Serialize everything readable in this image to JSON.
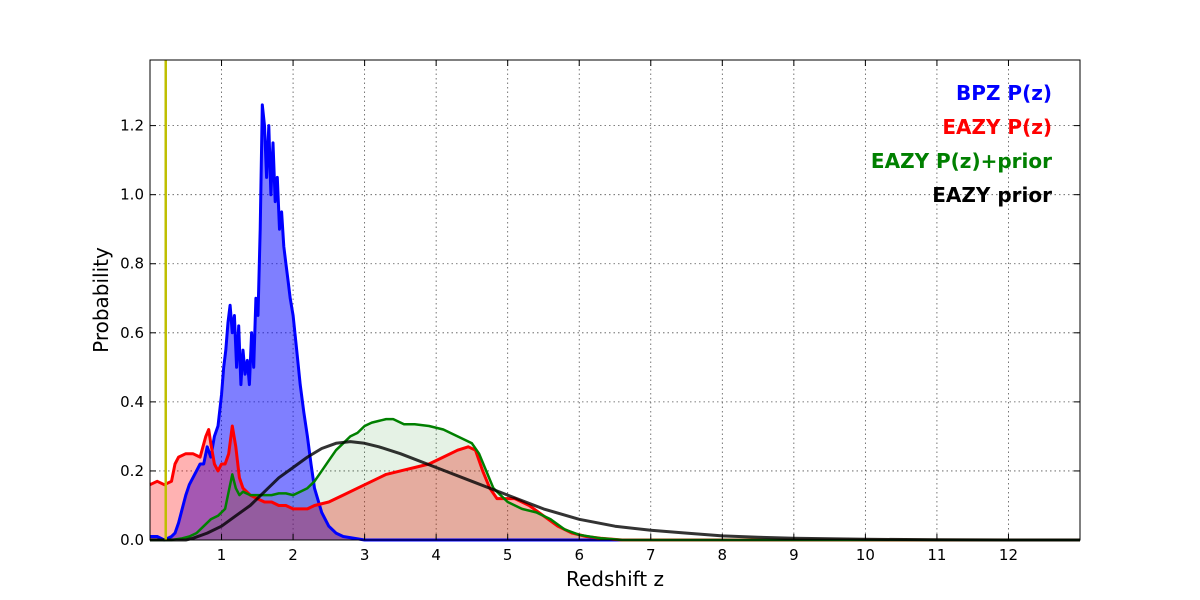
{
  "chart_data": {
    "type": "area",
    "xlabel": "Redshift z",
    "ylabel": "Probability",
    "xlim": [
      0,
      13
    ],
    "ylim": [
      0,
      1.39
    ],
    "x_ticks": [
      1,
      2,
      3,
      4,
      5,
      6,
      7,
      8,
      9,
      10,
      11,
      12
    ],
    "y_ticks": [
      0.0,
      0.2,
      0.4,
      0.6,
      0.8,
      1.0,
      1.2
    ],
    "grid": true,
    "legend_position": "top-right",
    "vertical_line": {
      "x": 0.22,
      "color": "#bfbf00"
    },
    "series": [
      {
        "name": "BPZ P(z)",
        "color": "#0000ff",
        "fill_color": "#0000ff",
        "fill_opacity": 0.5,
        "line_width": 3,
        "x": [
          0,
          0.1,
          0.2,
          0.3,
          0.35,
          0.4,
          0.45,
          0.5,
          0.55,
          0.6,
          0.65,
          0.7,
          0.75,
          0.8,
          0.85,
          0.9,
          0.95,
          1.0,
          1.03,
          1.06,
          1.09,
          1.12,
          1.15,
          1.18,
          1.21,
          1.24,
          1.27,
          1.3,
          1.33,
          1.36,
          1.39,
          1.42,
          1.45,
          1.48,
          1.51,
          1.54,
          1.57,
          1.6,
          1.63,
          1.66,
          1.69,
          1.72,
          1.75,
          1.78,
          1.81,
          1.84,
          1.87,
          1.9,
          1.93,
          1.96,
          2.0,
          2.05,
          2.1,
          2.15,
          2.2,
          2.25,
          2.3,
          2.4,
          2.5,
          2.6,
          2.7,
          3.0,
          13
        ],
        "y": [
          0.01,
          0.01,
          0.0,
          0.01,
          0.02,
          0.05,
          0.09,
          0.13,
          0.16,
          0.18,
          0.2,
          0.22,
          0.22,
          0.27,
          0.24,
          0.3,
          0.33,
          0.42,
          0.5,
          0.55,
          0.63,
          0.68,
          0.6,
          0.65,
          0.5,
          0.62,
          0.45,
          0.55,
          0.48,
          0.52,
          0.45,
          0.6,
          0.5,
          0.7,
          0.65,
          0.9,
          1.26,
          1.2,
          1.05,
          1.2,
          1.0,
          1.15,
          0.98,
          1.05,
          0.9,
          0.95,
          0.85,
          0.8,
          0.75,
          0.7,
          0.65,
          0.55,
          0.45,
          0.37,
          0.3,
          0.22,
          0.15,
          0.08,
          0.04,
          0.02,
          0.01,
          0.0,
          0.0
        ]
      },
      {
        "name": "EAZY P(z)",
        "color": "#ff0000",
        "fill_color": "#ff0000",
        "fill_opacity": 0.3,
        "line_width": 3,
        "x": [
          0,
          0.1,
          0.2,
          0.3,
          0.35,
          0.4,
          0.5,
          0.6,
          0.7,
          0.78,
          0.82,
          0.85,
          0.9,
          0.95,
          1.0,
          1.05,
          1.1,
          1.15,
          1.2,
          1.25,
          1.3,
          1.4,
          1.5,
          1.6,
          1.7,
          1.8,
          1.9,
          2.0,
          2.1,
          2.2,
          2.3,
          2.5,
          2.7,
          2.9,
          3.1,
          3.3,
          3.5,
          3.7,
          3.9,
          4.1,
          4.3,
          4.45,
          4.55,
          4.65,
          4.75,
          4.85,
          5.0,
          5.1,
          5.2,
          5.3,
          5.5,
          5.7,
          5.9,
          6.1,
          6.3,
          6.6,
          13
        ],
        "y": [
          0.16,
          0.17,
          0.16,
          0.17,
          0.22,
          0.24,
          0.25,
          0.25,
          0.24,
          0.3,
          0.32,
          0.28,
          0.22,
          0.2,
          0.22,
          0.22,
          0.25,
          0.33,
          0.27,
          0.18,
          0.15,
          0.13,
          0.12,
          0.11,
          0.11,
          0.1,
          0.1,
          0.09,
          0.09,
          0.09,
          0.1,
          0.11,
          0.13,
          0.15,
          0.17,
          0.19,
          0.2,
          0.21,
          0.22,
          0.24,
          0.26,
          0.27,
          0.26,
          0.2,
          0.15,
          0.12,
          0.12,
          0.12,
          0.11,
          0.1,
          0.07,
          0.04,
          0.02,
          0.01,
          0.005,
          0.0,
          0.0
        ]
      },
      {
        "name": "EAZY P(z)+prior",
        "color": "#008000",
        "fill_color": "#008000",
        "fill_opacity": 0.1,
        "line_width": 2.5,
        "x": [
          0,
          0.3,
          0.45,
          0.55,
          0.65,
          0.75,
          0.85,
          0.95,
          1.05,
          1.12,
          1.15,
          1.2,
          1.25,
          1.3,
          1.4,
          1.5,
          1.6,
          1.7,
          1.8,
          1.9,
          2.0,
          2.1,
          2.2,
          2.3,
          2.4,
          2.5,
          2.6,
          2.7,
          2.8,
          2.9,
          3.0,
          3.1,
          3.2,
          3.3,
          3.4,
          3.55,
          3.7,
          3.9,
          4.1,
          4.3,
          4.5,
          4.6,
          4.7,
          4.8,
          5.0,
          5.2,
          5.4,
          5.6,
          5.8,
          6.0,
          6.3,
          6.6,
          13
        ],
        "y": [
          0.0,
          0.0,
          0.005,
          0.01,
          0.02,
          0.04,
          0.06,
          0.07,
          0.09,
          0.16,
          0.19,
          0.15,
          0.13,
          0.14,
          0.13,
          0.13,
          0.13,
          0.13,
          0.135,
          0.135,
          0.13,
          0.14,
          0.15,
          0.17,
          0.2,
          0.23,
          0.26,
          0.28,
          0.3,
          0.31,
          0.33,
          0.34,
          0.345,
          0.35,
          0.35,
          0.335,
          0.335,
          0.33,
          0.32,
          0.3,
          0.28,
          0.25,
          0.2,
          0.15,
          0.11,
          0.09,
          0.08,
          0.06,
          0.03,
          0.015,
          0.005,
          0.0,
          0.0
        ]
      },
      {
        "name": "EAZY prior",
        "color": "#000000",
        "fill_color": "#000000",
        "fill_opacity": 0.0,
        "line_width": 3,
        "x": [
          0,
          0.5,
          0.6,
          0.8,
          1.0,
          1.2,
          1.4,
          1.6,
          1.8,
          2.0,
          2.2,
          2.4,
          2.6,
          2.8,
          3.0,
          3.2,
          3.5,
          4.0,
          4.5,
          5.0,
          5.5,
          6.0,
          6.5,
          7.0,
          7.5,
          8.0,
          8.5,
          9.0,
          10.0,
          11.0,
          12.0,
          13.0
        ],
        "y": [
          0.0,
          0.0,
          0.005,
          0.02,
          0.04,
          0.07,
          0.1,
          0.14,
          0.18,
          0.21,
          0.24,
          0.265,
          0.28,
          0.285,
          0.28,
          0.27,
          0.25,
          0.21,
          0.17,
          0.13,
          0.09,
          0.06,
          0.04,
          0.028,
          0.02,
          0.012,
          0.008,
          0.005,
          0.002,
          0.001,
          0.0,
          0.0
        ]
      }
    ]
  }
}
